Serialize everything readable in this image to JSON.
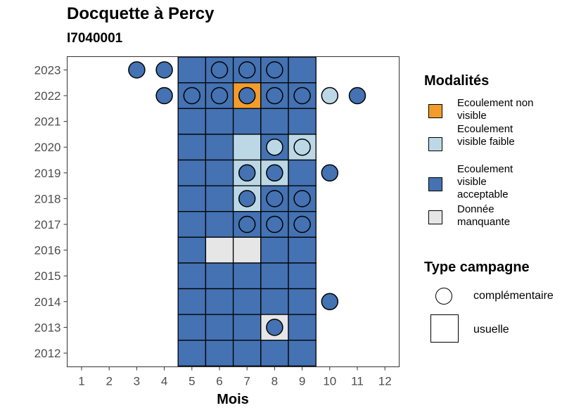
{
  "chart_data": {
    "type": "heatmap",
    "title": "Docquette à Percy",
    "subtitle": "I7040001",
    "xlabel": "Mois",
    "ylabel": "",
    "x_categories": [
      "1",
      "2",
      "3",
      "4",
      "5",
      "6",
      "7",
      "8",
      "9",
      "10",
      "11",
      "12"
    ],
    "y_categories": [
      "2012",
      "2013",
      "2014",
      "2015",
      "2016",
      "2017",
      "2018",
      "2019",
      "2020",
      "2021",
      "2022",
      "2023"
    ],
    "modalites": [
      {
        "key": "non_visible",
        "label": "Ecoulement non visible",
        "color": "#f39c2b"
      },
      {
        "key": "faible",
        "label": "Ecoulement visible faible",
        "color": "#bcd8e6"
      },
      {
        "key": "acceptable",
        "label": "Ecoulement visible acceptable",
        "color": "#4472b2"
      },
      {
        "key": "manquante",
        "label": "Donnée manquante",
        "color": "#e6e6e6"
      }
    ],
    "campaign_types": [
      {
        "key": "complementaire",
        "label": "complémentaire",
        "shape": "circle"
      },
      {
        "key": "usuelle",
        "label": "usuelle",
        "shape": "square"
      }
    ],
    "usuelle": [
      {
        "year": "2023",
        "month": 5,
        "modalite": "acceptable"
      },
      {
        "year": "2023",
        "month": 6,
        "modalite": "acceptable"
      },
      {
        "year": "2023",
        "month": 7,
        "modalite": "acceptable"
      },
      {
        "year": "2023",
        "month": 8,
        "modalite": "acceptable"
      },
      {
        "year": "2023",
        "month": 9,
        "modalite": "acceptable"
      },
      {
        "year": "2022",
        "month": 5,
        "modalite": "acceptable"
      },
      {
        "year": "2022",
        "month": 6,
        "modalite": "acceptable"
      },
      {
        "year": "2022",
        "month": 7,
        "modalite": "non_visible"
      },
      {
        "year": "2022",
        "month": 8,
        "modalite": "acceptable"
      },
      {
        "year": "2022",
        "month": 9,
        "modalite": "acceptable"
      },
      {
        "year": "2021",
        "month": 5,
        "modalite": "acceptable"
      },
      {
        "year": "2021",
        "month": 6,
        "modalite": "acceptable"
      },
      {
        "year": "2021",
        "month": 7,
        "modalite": "acceptable"
      },
      {
        "year": "2021",
        "month": 8,
        "modalite": "acceptable"
      },
      {
        "year": "2021",
        "month": 9,
        "modalite": "acceptable"
      },
      {
        "year": "2020",
        "month": 5,
        "modalite": "acceptable"
      },
      {
        "year": "2020",
        "month": 6,
        "modalite": "acceptable"
      },
      {
        "year": "2020",
        "month": 7,
        "modalite": "faible"
      },
      {
        "year": "2020",
        "month": 8,
        "modalite": "acceptable"
      },
      {
        "year": "2020",
        "month": 9,
        "modalite": "faible"
      },
      {
        "year": "2019",
        "month": 5,
        "modalite": "acceptable"
      },
      {
        "year": "2019",
        "month": 6,
        "modalite": "acceptable"
      },
      {
        "year": "2019",
        "month": 7,
        "modalite": "faible"
      },
      {
        "year": "2019",
        "month": 8,
        "modalite": "faible"
      },
      {
        "year": "2019",
        "month": 9,
        "modalite": "acceptable"
      },
      {
        "year": "2018",
        "month": 5,
        "modalite": "acceptable"
      },
      {
        "year": "2018",
        "month": 6,
        "modalite": "acceptable"
      },
      {
        "year": "2018",
        "month": 7,
        "modalite": "faible"
      },
      {
        "year": "2018",
        "month": 8,
        "modalite": "acceptable"
      },
      {
        "year": "2018",
        "month": 9,
        "modalite": "acceptable"
      },
      {
        "year": "2017",
        "month": 5,
        "modalite": "acceptable"
      },
      {
        "year": "2017",
        "month": 6,
        "modalite": "acceptable"
      },
      {
        "year": "2017",
        "month": 7,
        "modalite": "acceptable"
      },
      {
        "year": "2017",
        "month": 8,
        "modalite": "acceptable"
      },
      {
        "year": "2017",
        "month": 9,
        "modalite": "acceptable"
      },
      {
        "year": "2016",
        "month": 5,
        "modalite": "acceptable"
      },
      {
        "year": "2016",
        "month": 6,
        "modalite": "manquante"
      },
      {
        "year": "2016",
        "month": 7,
        "modalite": "manquante"
      },
      {
        "year": "2016",
        "month": 8,
        "modalite": "acceptable"
      },
      {
        "year": "2016",
        "month": 9,
        "modalite": "acceptable"
      },
      {
        "year": "2015",
        "month": 5,
        "modalite": "acceptable"
      },
      {
        "year": "2015",
        "month": 6,
        "modalite": "acceptable"
      },
      {
        "year": "2015",
        "month": 7,
        "modalite": "acceptable"
      },
      {
        "year": "2015",
        "month": 8,
        "modalite": "acceptable"
      },
      {
        "year": "2015",
        "month": 9,
        "modalite": "acceptable"
      },
      {
        "year": "2014",
        "month": 5,
        "modalite": "acceptable"
      },
      {
        "year": "2014",
        "month": 6,
        "modalite": "acceptable"
      },
      {
        "year": "2014",
        "month": 7,
        "modalite": "acceptable"
      },
      {
        "year": "2014",
        "month": 8,
        "modalite": "acceptable"
      },
      {
        "year": "2014",
        "month": 9,
        "modalite": "acceptable"
      },
      {
        "year": "2013",
        "month": 5,
        "modalite": "acceptable"
      },
      {
        "year": "2013",
        "month": 6,
        "modalite": "acceptable"
      },
      {
        "year": "2013",
        "month": 7,
        "modalite": "acceptable"
      },
      {
        "year": "2013",
        "month": 8,
        "modalite": "manquante"
      },
      {
        "year": "2013",
        "month": 9,
        "modalite": "acceptable"
      },
      {
        "year": "2012",
        "month": 5,
        "modalite": "acceptable"
      },
      {
        "year": "2012",
        "month": 6,
        "modalite": "acceptable"
      },
      {
        "year": "2012",
        "month": 7,
        "modalite": "acceptable"
      },
      {
        "year": "2012",
        "month": 8,
        "modalite": "acceptable"
      },
      {
        "year": "2012",
        "month": 9,
        "modalite": "acceptable"
      }
    ],
    "complementaire": [
      {
        "year": "2023",
        "month": 3,
        "modalite": "acceptable"
      },
      {
        "year": "2023",
        "month": 4,
        "modalite": "acceptable"
      },
      {
        "year": "2023",
        "month": 6,
        "modalite": "acceptable"
      },
      {
        "year": "2023",
        "month": 7,
        "modalite": "acceptable"
      },
      {
        "year": "2023",
        "month": 8,
        "modalite": "acceptable"
      },
      {
        "year": "2022",
        "month": 4,
        "modalite": "acceptable"
      },
      {
        "year": "2022",
        "month": 5,
        "modalite": "acceptable"
      },
      {
        "year": "2022",
        "month": 6,
        "modalite": "acceptable"
      },
      {
        "year": "2022",
        "month": 7,
        "modalite": "acceptable"
      },
      {
        "year": "2022",
        "month": 8,
        "modalite": "acceptable"
      },
      {
        "year": "2022",
        "month": 9,
        "modalite": "acceptable"
      },
      {
        "year": "2022",
        "month": 10,
        "modalite": "faible"
      },
      {
        "year": "2022",
        "month": 11,
        "modalite": "acceptable"
      },
      {
        "year": "2020",
        "month": 8,
        "modalite": "faible"
      },
      {
        "year": "2020",
        "month": 9,
        "modalite": "faible"
      },
      {
        "year": "2019",
        "month": 7,
        "modalite": "acceptable"
      },
      {
        "year": "2019",
        "month": 8,
        "modalite": "acceptable"
      },
      {
        "year": "2019",
        "month": 10,
        "modalite": "acceptable"
      },
      {
        "year": "2018",
        "month": 7,
        "modalite": "acceptable"
      },
      {
        "year": "2018",
        "month": 8,
        "modalite": "acceptable"
      },
      {
        "year": "2018",
        "month": 9,
        "modalite": "acceptable"
      },
      {
        "year": "2017",
        "month": 7,
        "modalite": "acceptable"
      },
      {
        "year": "2017",
        "month": 8,
        "modalite": "acceptable"
      },
      {
        "year": "2017",
        "month": 9,
        "modalite": "acceptable"
      },
      {
        "year": "2014",
        "month": 10,
        "modalite": "acceptable"
      },
      {
        "year": "2013",
        "month": 8,
        "modalite": "acceptable"
      }
    ],
    "legend_titles": {
      "fill": "Modalités",
      "shape": "Type campagne"
    },
    "legend_position": "right",
    "grid": false
  }
}
